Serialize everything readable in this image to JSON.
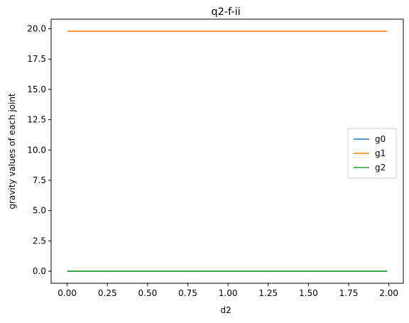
{
  "chart_data": {
    "type": "line",
    "title": "q2-f-ii",
    "xlabel": "d2",
    "ylabel": "gravity values of each joint",
    "xlim": [
      -0.1,
      2.09
    ],
    "ylim": [
      -0.99,
      20.79
    ],
    "x_ticks": [
      "0.00",
      "0.25",
      "0.50",
      "0.75",
      "1.00",
      "1.25",
      "1.50",
      "1.75",
      "2.00"
    ],
    "y_ticks": [
      "0.0",
      "2.5",
      "5.0",
      "7.5",
      "10.0",
      "12.5",
      "15.0",
      "17.5",
      "20.0"
    ],
    "grid": false,
    "legend_position": "center-right",
    "x": [
      0.0,
      1.99
    ],
    "series": [
      {
        "name": "g0",
        "color": "#1f77b4",
        "values": [
          0.0,
          0.0
        ]
      },
      {
        "name": "g1",
        "color": "#ff7f0e",
        "values": [
          19.8,
          19.8
        ]
      },
      {
        "name": "g2",
        "color": "#2ca02c",
        "values": [
          0.0,
          0.0
        ]
      }
    ]
  }
}
